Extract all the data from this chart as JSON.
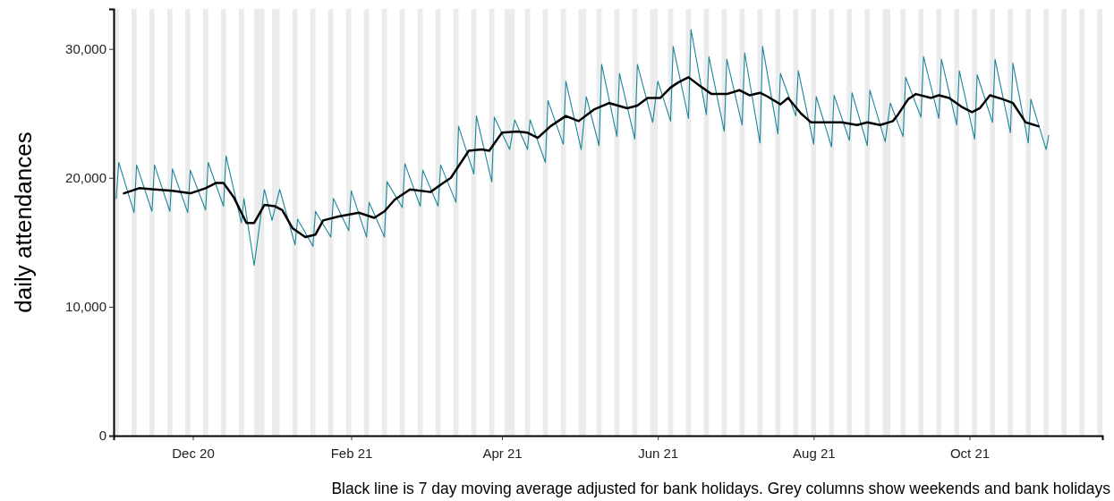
{
  "chart_data": {
    "type": "line",
    "ylabel": "daily attendances",
    "annotations": [
      "Black line is 7 day moving average adjusted for bank holidays. Grey columns show weekends and bank holidays"
    ],
    "xlim": [
      "2020-10-31",
      "2021-11-22"
    ],
    "xticks": [
      {
        "value": "2020-12-01",
        "label": "Dec 20"
      },
      {
        "value": "2021-02-01",
        "label": "Feb 21"
      },
      {
        "value": "2021-04-01",
        "label": "Apr 21"
      },
      {
        "value": "2021-06-01",
        "label": "Jun 21"
      },
      {
        "value": "2021-08-01",
        "label": "Aug 21"
      },
      {
        "value": "2021-10-01",
        "label": "Oct 21"
      }
    ],
    "ylim": [
      0,
      33100
    ],
    "yticks": [
      {
        "value": 0,
        "label": "0"
      },
      {
        "value": 10000,
        "label": "10,000"
      },
      {
        "value": 20000,
        "label": "20,000"
      },
      {
        "value": 30000,
        "label": "30,000"
      }
    ],
    "grid": false,
    "marker": "none",
    "series": [
      {
        "color": "#1b879a",
        "x": [
          "2020-11-01",
          "2020-11-02",
          "2020-11-08",
          "2020-11-09",
          "2020-11-15",
          "2020-11-16",
          "2020-11-22",
          "2020-11-23",
          "2020-11-29",
          "2020-11-30",
          "2020-12-06",
          "2020-12-07",
          "2020-12-13",
          "2020-12-14",
          "2020-12-20",
          "2020-12-21",
          "2020-12-25",
          "2020-12-29",
          "2021-01-01",
          "2021-01-04",
          "2021-01-10",
          "2021-01-11",
          "2021-01-17",
          "2021-01-18",
          "2021-01-24",
          "2021-01-25",
          "2021-01-31",
          "2021-02-01",
          "2021-02-07",
          "2021-02-08",
          "2021-02-14",
          "2021-02-15",
          "2021-02-21",
          "2021-02-22",
          "2021-02-28",
          "2021-03-01",
          "2021-03-07",
          "2021-03-08",
          "2021-03-14",
          "2021-03-15",
          "2021-03-21",
          "2021-03-22",
          "2021-03-28",
          "2021-03-29",
          "2021-04-04",
          "2021-04-06",
          "2021-04-11",
          "2021-04-12",
          "2021-04-18",
          "2021-04-19",
          "2021-04-25",
          "2021-04-26",
          "2021-05-02",
          "2021-05-04",
          "2021-05-09",
          "2021-05-10",
          "2021-05-16",
          "2021-05-17",
          "2021-05-23",
          "2021-05-24",
          "2021-05-30",
          "2021-06-01",
          "2021-06-06",
          "2021-06-07",
          "2021-06-13",
          "2021-06-14",
          "2021-06-20",
          "2021-06-21",
          "2021-06-27",
          "2021-06-28",
          "2021-07-04",
          "2021-07-05",
          "2021-07-11",
          "2021-07-12",
          "2021-07-18",
          "2021-07-19",
          "2021-07-25",
          "2021-07-26",
          "2021-08-01",
          "2021-08-02",
          "2021-08-08",
          "2021-08-09",
          "2021-08-15",
          "2021-08-16",
          "2021-08-22",
          "2021-08-23",
          "2021-08-29",
          "2021-08-31",
          "2021-09-05",
          "2021-09-06",
          "2021-09-12",
          "2021-09-13",
          "2021-09-19",
          "2021-09-20",
          "2021-09-26",
          "2021-09-27",
          "2021-10-03",
          "2021-10-04",
          "2021-10-10",
          "2021-10-11",
          "2021-10-17",
          "2021-10-18",
          "2021-10-24",
          "2021-10-25",
          "2021-10-31",
          "2021-11-01"
        ],
        "values": [
          18400,
          21200,
          17300,
          21000,
          17400,
          21000,
          17400,
          20700,
          17300,
          20600,
          17500,
          21200,
          17800,
          21700,
          16500,
          18400,
          13200,
          19100,
          16700,
          19100,
          14800,
          16800,
          14700,
          17400,
          15400,
          18400,
          15900,
          19000,
          15400,
          18100,
          15400,
          19700,
          17700,
          21100,
          17800,
          20600,
          17800,
          21000,
          18100,
          24000,
          20300,
          24800,
          19700,
          24700,
          22200,
          24500,
          22200,
          24500,
          21200,
          26000,
          22600,
          27500,
          22200,
          26300,
          22500,
          28800,
          23200,
          28100,
          23000,
          28800,
          24300,
          27500,
          24400,
          30200,
          24600,
          31500,
          24900,
          29400,
          23600,
          29200,
          24100,
          29700,
          22700,
          30200,
          23400,
          28100,
          24800,
          28300,
          22600,
          26300,
          22400,
          26400,
          22900,
          26600,
          22500,
          26800,
          22800,
          25800,
          23200,
          27800,
          24700,
          29400,
          24600,
          29200,
          24100,
          28300,
          23000,
          28000,
          24300,
          29200,
          23500,
          28900,
          22700,
          26100,
          22200,
          23300
        ]
      },
      {
        "color": "#000000",
        "x": [
          "2020-11-04",
          "2020-11-10",
          "2020-11-16",
          "2020-11-23",
          "2020-11-30",
          "2020-12-06",
          "2020-12-10",
          "2020-12-13",
          "2020-12-17",
          "2020-12-22",
          "2020-12-25",
          "2020-12-29",
          "2021-01-02",
          "2021-01-05",
          "2021-01-09",
          "2021-01-14",
          "2021-01-18",
          "2021-01-21",
          "2021-01-27",
          "2021-02-04",
          "2021-02-10",
          "2021-02-14",
          "2021-02-18",
          "2021-02-24",
          "2021-03-04",
          "2021-03-09",
          "2021-03-12",
          "2021-03-16",
          "2021-03-19",
          "2021-03-24",
          "2021-03-27",
          "2021-04-01",
          "2021-04-07",
          "2021-04-11",
          "2021-04-15",
          "2021-04-20",
          "2021-04-26",
          "2021-05-01",
          "2021-05-07",
          "2021-05-13",
          "2021-05-20",
          "2021-05-24",
          "2021-05-28",
          "2021-06-02",
          "2021-06-06",
          "2021-06-09",
          "2021-06-13",
          "2021-06-17",
          "2021-06-22",
          "2021-06-28",
          "2021-07-03",
          "2021-07-07",
          "2021-07-11",
          "2021-07-14",
          "2021-07-19",
          "2021-07-22",
          "2021-07-27",
          "2021-07-31",
          "2021-08-04",
          "2021-08-12",
          "2021-08-18",
          "2021-08-22",
          "2021-08-27",
          "2021-09-01",
          "2021-09-03",
          "2021-09-07",
          "2021-09-10",
          "2021-09-16",
          "2021-09-19",
          "2021-09-23",
          "2021-09-28",
          "2021-10-02",
          "2021-10-05",
          "2021-10-09",
          "2021-10-14",
          "2021-10-18",
          "2021-10-23",
          "2021-10-28"
        ],
        "values": [
          18800,
          19200,
          19100,
          19000,
          18800,
          19200,
          19600,
          19600,
          18500,
          16500,
          16500,
          17900,
          17800,
          17500,
          16100,
          15400,
          15600,
          16700,
          17000,
          17300,
          16900,
          17400,
          18300,
          19100,
          18900,
          19600,
          20000,
          21200,
          22100,
          22200,
          22100,
          23500,
          23600,
          23500,
          23100,
          24000,
          24800,
          24400,
          25300,
          25800,
          25400,
          25600,
          26200,
          26200,
          27000,
          27400,
          27800,
          27200,
          26500,
          26500,
          26800,
          26400,
          26600,
          26300,
          25700,
          26200,
          25000,
          24300,
          24300,
          24300,
          24100,
          24300,
          24100,
          24400,
          24900,
          26100,
          26500,
          26200,
          26400,
          26200,
          25500,
          25100,
          25400,
          26400,
          26100,
          25800,
          24300,
          24000
        ]
      }
    ],
    "bands": [
      {
        "axis": "x",
        "from": "2020-10-31",
        "to": "2020-11-02",
        "color": "#ebebeb"
      },
      {
        "axis": "x",
        "from": "2020-11-07",
        "to": "2020-11-09",
        "color": "#ebebeb"
      },
      {
        "axis": "x",
        "from": "2020-11-14",
        "to": "2020-11-16",
        "color": "#ebebeb"
      },
      {
        "axis": "x",
        "from": "2020-11-21",
        "to": "2020-11-23",
        "color": "#ebebeb"
      },
      {
        "axis": "x",
        "from": "2020-11-28",
        "to": "2020-11-30",
        "color": "#ebebeb"
      },
      {
        "axis": "x",
        "from": "2020-12-05",
        "to": "2020-12-07",
        "color": "#ebebeb"
      },
      {
        "axis": "x",
        "from": "2020-12-12",
        "to": "2020-12-14",
        "color": "#ebebeb"
      },
      {
        "axis": "x",
        "from": "2020-12-19",
        "to": "2020-12-21",
        "color": "#ebebeb"
      },
      {
        "axis": "x",
        "from": "2020-12-25",
        "to": "2020-12-29",
        "color": "#ebebeb"
      },
      {
        "axis": "x",
        "from": "2021-01-01",
        "to": "2021-01-04",
        "color": "#ebebeb"
      },
      {
        "axis": "x",
        "from": "2021-01-09",
        "to": "2021-01-11",
        "color": "#ebebeb"
      },
      {
        "axis": "x",
        "from": "2021-01-16",
        "to": "2021-01-18",
        "color": "#ebebeb"
      },
      {
        "axis": "x",
        "from": "2021-01-23",
        "to": "2021-01-25",
        "color": "#ebebeb"
      },
      {
        "axis": "x",
        "from": "2021-01-30",
        "to": "2021-02-01",
        "color": "#ebebeb"
      },
      {
        "axis": "x",
        "from": "2021-02-06",
        "to": "2021-02-08",
        "color": "#ebebeb"
      },
      {
        "axis": "x",
        "from": "2021-02-13",
        "to": "2021-02-15",
        "color": "#ebebeb"
      },
      {
        "axis": "x",
        "from": "2021-02-20",
        "to": "2021-02-22",
        "color": "#ebebeb"
      },
      {
        "axis": "x",
        "from": "2021-02-27",
        "to": "2021-03-01",
        "color": "#ebebeb"
      },
      {
        "axis": "x",
        "from": "2021-03-06",
        "to": "2021-03-08",
        "color": "#ebebeb"
      },
      {
        "axis": "x",
        "from": "2021-03-13",
        "to": "2021-03-15",
        "color": "#ebebeb"
      },
      {
        "axis": "x",
        "from": "2021-03-20",
        "to": "2021-03-22",
        "color": "#ebebeb"
      },
      {
        "axis": "x",
        "from": "2021-03-27",
        "to": "2021-03-29",
        "color": "#ebebeb"
      },
      {
        "axis": "x",
        "from": "2021-04-02",
        "to": "2021-04-06",
        "color": "#ebebeb"
      },
      {
        "axis": "x",
        "from": "2021-04-10",
        "to": "2021-04-12",
        "color": "#ebebeb"
      },
      {
        "axis": "x",
        "from": "2021-04-17",
        "to": "2021-04-19",
        "color": "#ebebeb"
      },
      {
        "axis": "x",
        "from": "2021-04-24",
        "to": "2021-04-26",
        "color": "#ebebeb"
      },
      {
        "axis": "x",
        "from": "2021-05-01",
        "to": "2021-05-04",
        "color": "#ebebeb"
      },
      {
        "axis": "x",
        "from": "2021-05-08",
        "to": "2021-05-10",
        "color": "#ebebeb"
      },
      {
        "axis": "x",
        "from": "2021-05-15",
        "to": "2021-05-17",
        "color": "#ebebeb"
      },
      {
        "axis": "x",
        "from": "2021-05-22",
        "to": "2021-05-24",
        "color": "#ebebeb"
      },
      {
        "axis": "x",
        "from": "2021-05-29",
        "to": "2021-06-01",
        "color": "#ebebeb"
      },
      {
        "axis": "x",
        "from": "2021-06-05",
        "to": "2021-06-07",
        "color": "#ebebeb"
      },
      {
        "axis": "x",
        "from": "2021-06-12",
        "to": "2021-06-14",
        "color": "#ebebeb"
      },
      {
        "axis": "x",
        "from": "2021-06-19",
        "to": "2021-06-21",
        "color": "#ebebeb"
      },
      {
        "axis": "x",
        "from": "2021-06-26",
        "to": "2021-06-28",
        "color": "#ebebeb"
      },
      {
        "axis": "x",
        "from": "2021-07-03",
        "to": "2021-07-05",
        "color": "#ebebeb"
      },
      {
        "axis": "x",
        "from": "2021-07-10",
        "to": "2021-07-12",
        "color": "#ebebeb"
      },
      {
        "axis": "x",
        "from": "2021-07-17",
        "to": "2021-07-19",
        "color": "#ebebeb"
      },
      {
        "axis": "x",
        "from": "2021-07-24",
        "to": "2021-07-26",
        "color": "#ebebeb"
      },
      {
        "axis": "x",
        "from": "2021-07-31",
        "to": "2021-08-02",
        "color": "#ebebeb"
      },
      {
        "axis": "x",
        "from": "2021-08-07",
        "to": "2021-08-09",
        "color": "#ebebeb"
      },
      {
        "axis": "x",
        "from": "2021-08-14",
        "to": "2021-08-16",
        "color": "#ebebeb"
      },
      {
        "axis": "x",
        "from": "2021-08-21",
        "to": "2021-08-23",
        "color": "#ebebeb"
      },
      {
        "axis": "x",
        "from": "2021-08-28",
        "to": "2021-08-31",
        "color": "#ebebeb"
      },
      {
        "axis": "x",
        "from": "2021-09-04",
        "to": "2021-09-06",
        "color": "#ebebeb"
      },
      {
        "axis": "x",
        "from": "2021-09-11",
        "to": "2021-09-13",
        "color": "#ebebeb"
      },
      {
        "axis": "x",
        "from": "2021-09-18",
        "to": "2021-09-20",
        "color": "#ebebeb"
      },
      {
        "axis": "x",
        "from": "2021-09-25",
        "to": "2021-09-27",
        "color": "#ebebeb"
      },
      {
        "axis": "x",
        "from": "2021-10-02",
        "to": "2021-10-04",
        "color": "#ebebeb"
      },
      {
        "axis": "x",
        "from": "2021-10-09",
        "to": "2021-10-11",
        "color": "#ebebeb"
      },
      {
        "axis": "x",
        "from": "2021-10-16",
        "to": "2021-10-18",
        "color": "#ebebeb"
      },
      {
        "axis": "x",
        "from": "2021-10-23",
        "to": "2021-10-25",
        "color": "#ebebeb"
      },
      {
        "axis": "x",
        "from": "2021-10-30",
        "to": "2021-11-01",
        "color": "#ebebeb"
      },
      {
        "axis": "x",
        "from": "2021-11-06",
        "to": "2021-11-08",
        "color": "#ebebeb"
      },
      {
        "axis": "x",
        "from": "2021-11-13",
        "to": "2021-11-15",
        "color": "#ebebeb"
      },
      {
        "axis": "x",
        "from": "2021-11-20",
        "to": "2021-11-22",
        "color": "#ebebeb"
      }
    ]
  }
}
